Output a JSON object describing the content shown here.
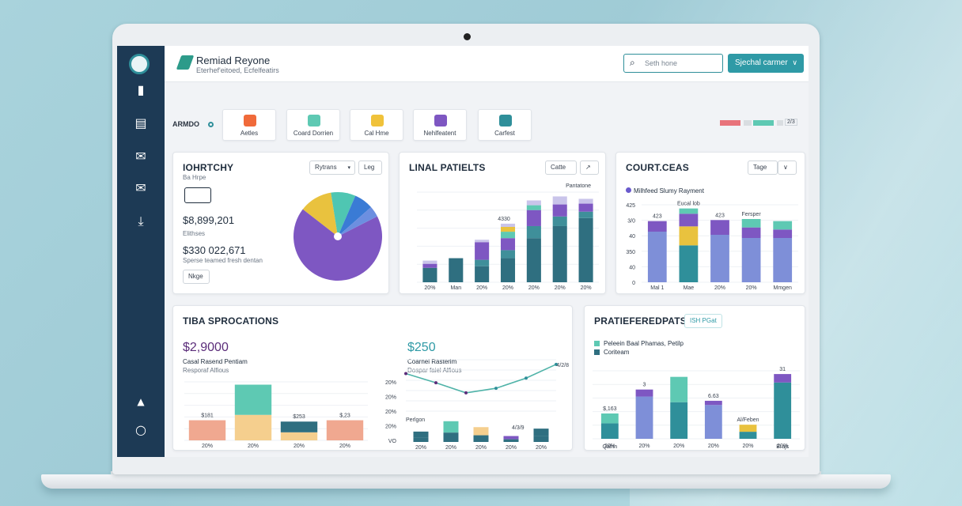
{
  "header": {
    "title": "Remiad Reyone",
    "subtitle": "Eterhef'eitoed, Ecfelfeatirs",
    "search_placeholder": "Seth hone",
    "action_label": "Sjechal carmer"
  },
  "toolbar": {
    "label": "ARMDO",
    "quick_actions": [
      {
        "label": "Aetles",
        "color": "#f06a3a"
      },
      {
        "label": "Coard Dorrien",
        "color": "#5ec9b3"
      },
      {
        "label": "Cal Hme",
        "color": "#f0c23a"
      },
      {
        "label": "Nehlfeatent",
        "color": "#7e57c2"
      },
      {
        "label": "Carfest",
        "color": "#2f8f9a"
      }
    ],
    "legend_colors": [
      "#e8737b",
      "#5ec9b3",
      "#d9dde1"
    ],
    "legend_label": "2/3"
  },
  "card_pie": {
    "title": "IOHRTCHY",
    "subtitle": "Ba Hrpe",
    "dropdown": "Rytrans",
    "dropdown2": "Leg",
    "stat1_value": "$8,899,201",
    "stat1_label": "Elithses",
    "stat2_value": "$330 022,671",
    "stat2_label": "Sperse teamed fresh dentan",
    "button": "Nkge",
    "chart_data": {
      "type": "pie",
      "values": [
        68,
        12,
        9,
        7,
        4
      ],
      "colors": [
        "#7e57c2",
        "#e9c23e",
        "#4fc6b2",
        "#3a7bd5",
        "#6c8fe0"
      ]
    }
  },
  "card_bars1": {
    "title": "LINAL PATIELTS",
    "dropdown": "Catte",
    "chart_data": {
      "type": "bar",
      "categories": [
        "20%",
        "Man",
        "20%",
        "20%",
        "20%",
        "20%",
        "20%"
      ],
      "stack_colors": [
        "#2f6f80",
        "#3f8f9a",
        "#7e57c2",
        "#5ec9b3",
        "#e9c23e",
        "#c9c4ea"
      ],
      "series": [
        {
          "values": [
            18,
            30,
            20,
            30,
            55,
            70,
            80
          ]
        },
        {
          "values": [
            0,
            0,
            8,
            10,
            15,
            12,
            8
          ]
        },
        {
          "values": [
            5,
            0,
            22,
            15,
            20,
            15,
            10
          ]
        },
        {
          "values": [
            0,
            0,
            0,
            8,
            6,
            0,
            0
          ]
        },
        {
          "values": [
            0,
            0,
            0,
            6,
            0,
            0,
            0
          ]
        },
        {
          "values": [
            4,
            0,
            3,
            4,
            6,
            10,
            6
          ]
        }
      ],
      "top_label": "Pantatone",
      "mid_label": "4330"
    }
  },
  "card_bars2": {
    "title": "COURT.CEAS",
    "dropdown": "Tage",
    "legend": "Milhfeed Slumy Rayment",
    "chart_data": {
      "type": "bar",
      "categories": [
        "Mal 1",
        "Mae",
        "20%",
        "20%",
        "Mmgen"
      ],
      "yticks": [
        "0",
        "40",
        "350",
        "40",
        "3/0",
        "425"
      ],
      "stack_colors": [
        "#7e8fd8",
        "#2f8f9a",
        "#e9c23e",
        "#7e57c2",
        "#5ec9b3"
      ],
      "series": [
        {
          "values": [
            48,
            0,
            45,
            42,
            42
          ]
        },
        {
          "values": [
            0,
            35,
            0,
            0,
            0
          ]
        },
        {
          "values": [
            0,
            18,
            0,
            0,
            0
          ]
        },
        {
          "values": [
            10,
            12,
            14,
            10,
            8
          ]
        },
        {
          "values": [
            0,
            5,
            0,
            8,
            8
          ]
        }
      ],
      "labels": [
        "423",
        "Eucal lob",
        "423",
        "Fersper"
      ]
    }
  },
  "card_spro": {
    "title": "TIBA SPROCATIONS",
    "stat1_value": "$2,9000",
    "stat1_label": "Casal Rasend Pentiam",
    "stat1_sub": "Resporaf Alfious",
    "stat2_value": "$250",
    "stat2_label": "Coarnel Rasterim",
    "stat2_sub": "Dospar faiel Alfious",
    "bar_chart": {
      "type": "bar",
      "categories": [
        "20%",
        "20%",
        "20%",
        "20%"
      ],
      "yticks": [
        "VO",
        "20%",
        "20%",
        "20%",
        "20%"
      ],
      "stack_colors": [
        "#f0a890",
        "#f5cf8e",
        "#5ec9b3",
        "#2f6f80"
      ],
      "series": [
        {
          "name": "",
          "values": [
            30,
            0,
            0,
            30
          ]
        },
        {
          "values": [
            0,
            38,
            12,
            0
          ]
        },
        {
          "values": [
            0,
            45,
            0,
            0
          ]
        },
        {
          "values": [
            0,
            0,
            16,
            0
          ]
        }
      ],
      "labels": [
        "$181",
        "",
        "$253",
        "$,23"
      ]
    },
    "line_chart": {
      "type": "line",
      "x": [
        0,
        1,
        2,
        3,
        4,
        5
      ],
      "y": [
        80,
        60,
        38,
        48,
        70,
        100
      ],
      "end_label": "4/2/8"
    },
    "mini_bars": {
      "categories": [
        "20%",
        "20%",
        "20%",
        "20%",
        "20%"
      ],
      "values": [
        14,
        28,
        20,
        8,
        18
      ],
      "label": "Perlgon",
      "mid_label": "4/3/9"
    }
  },
  "card_prati": {
    "title": "PRATIEFEREDPATS",
    "badge": "ISH PGat",
    "legend1": "Peleein Baal Phamas, Petilp",
    "legend2": "Coriteam",
    "chart_data": {
      "type": "bar",
      "categories": [
        "20%",
        "20%",
        "20%",
        "20%",
        "20%",
        "20%"
      ],
      "stack_colors": [
        "#2f8f9a",
        "#7e8fd8",
        "#7e57c2",
        "#5ec9b3",
        "#e9c23e"
      ],
      "series": [
        {
          "values": [
            22,
            0,
            52,
            0,
            10,
            80
          ]
        },
        {
          "values": [
            0,
            60,
            0,
            48,
            0,
            0
          ]
        },
        {
          "values": [
            0,
            10,
            0,
            6,
            0,
            12
          ]
        },
        {
          "values": [
            14,
            0,
            36,
            0,
            0,
            0
          ]
        },
        {
          "values": [
            0,
            0,
            0,
            0,
            10,
            0
          ]
        }
      ],
      "labels": [
        "$,163",
        "3",
        "",
        "6.63",
        "Al/Feben",
        "31"
      ],
      "xlabels_sub": [
        "Qalnn",
        "",
        "",
        "",
        "",
        "Brajs"
      ]
    }
  }
}
